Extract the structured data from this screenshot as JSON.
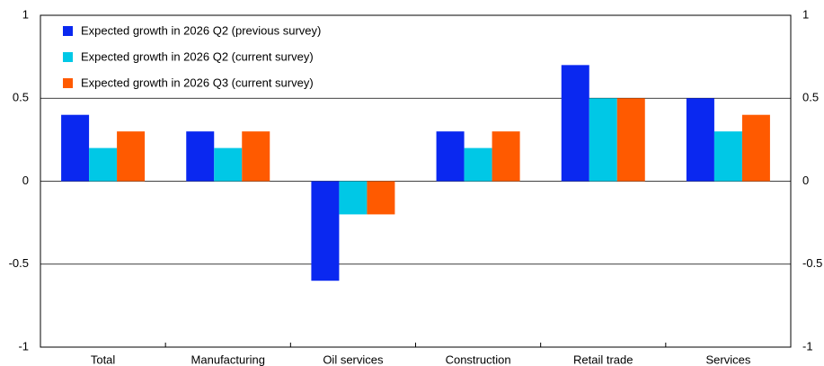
{
  "chart_data": {
    "type": "bar",
    "categories": [
      "Total",
      "Manufacturing",
      "Oil services",
      "Construction",
      "Retail trade",
      "Services"
    ],
    "series": [
      {
        "name": "Expected growth in 2026 Q2 (previous survey)",
        "color": "#0a28f0",
        "values": [
          0.4,
          0.3,
          -0.6,
          0.3,
          0.7,
          0.5
        ]
      },
      {
        "name": "Expected growth in 2026 Q2 (current survey)",
        "color": "#00c8e6",
        "values": [
          0.2,
          0.2,
          -0.2,
          0.2,
          0.5,
          0.3
        ]
      },
      {
        "name": "Expected growth in 2026 Q3 (current survey)",
        "color": "#ff5a00",
        "values": [
          0.3,
          0.3,
          -0.2,
          0.3,
          0.5,
          0.4
        ]
      }
    ],
    "ylim": [
      -1,
      1
    ],
    "yticks": [
      -1,
      -0.5,
      0,
      0.5,
      1
    ],
    "y2lim": [
      -1,
      1
    ],
    "y2ticks": [
      -1,
      -0.5,
      0,
      0.5,
      1
    ],
    "grid": true,
    "legend": "upper left"
  }
}
